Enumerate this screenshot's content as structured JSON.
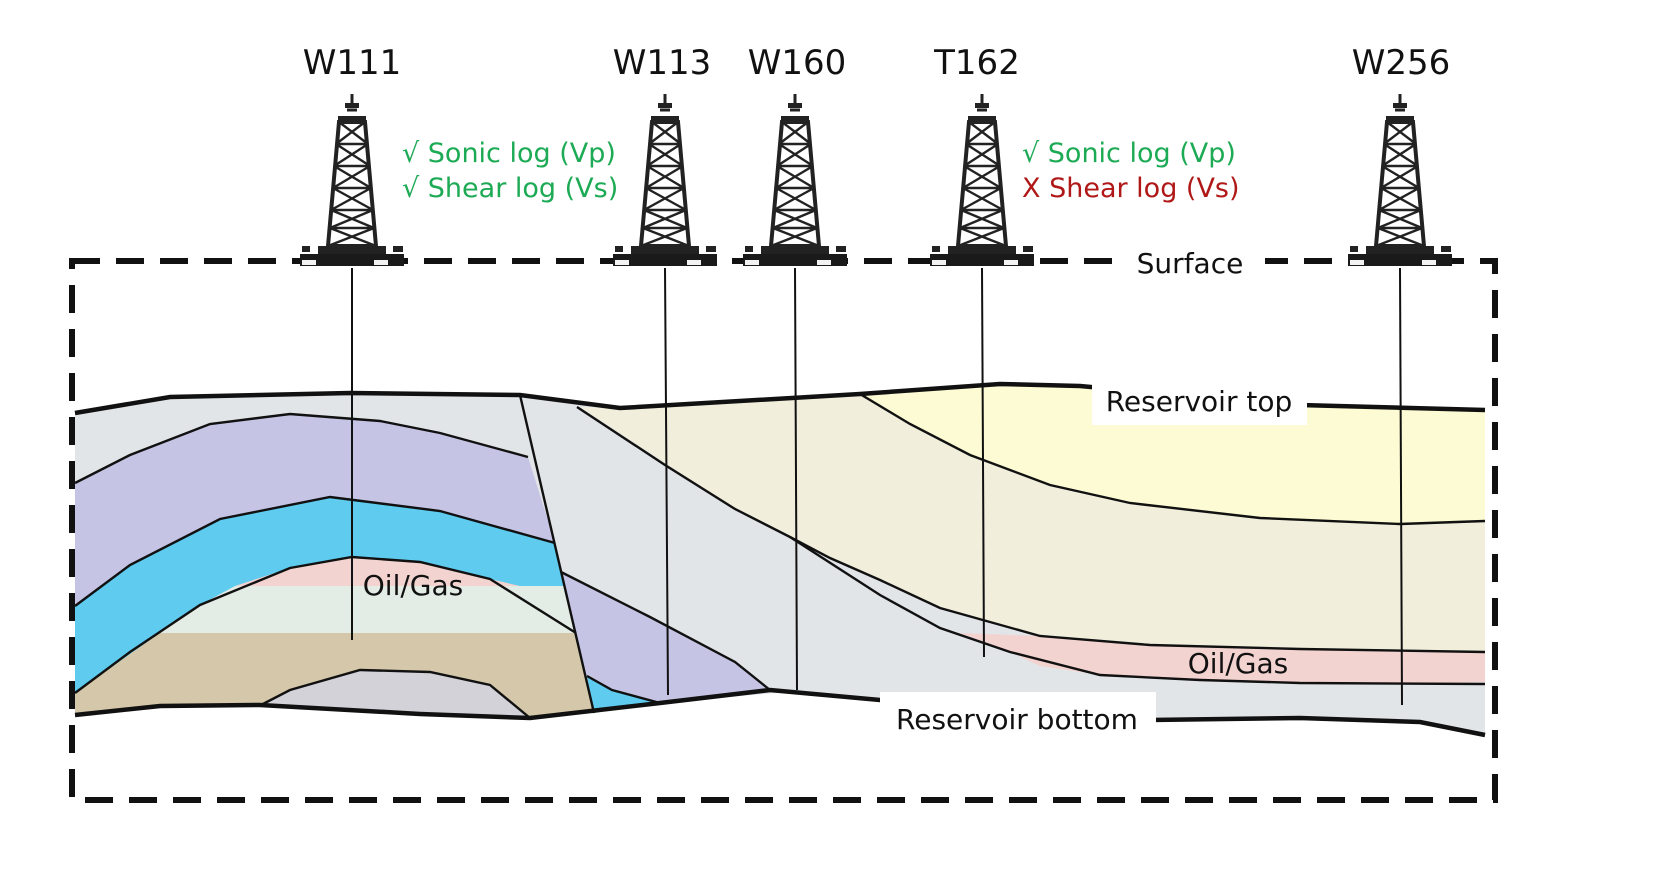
{
  "wells": [
    {
      "name": "W111",
      "color": "#111111"
    },
    {
      "name": "W113",
      "color": "#111111"
    },
    {
      "name": "W160",
      "color": "#111111"
    },
    {
      "name": "T162",
      "color": "#b01818"
    },
    {
      "name": "W256",
      "color": "#111111"
    }
  ],
  "logs": {
    "w111": {
      "sonic": {
        "text": "√ Sonic log (Vp)",
        "color": "#1daa55"
      },
      "shear": {
        "text": "√ Shear log (Vs)",
        "color": "#1daa55"
      }
    },
    "t162": {
      "sonic": {
        "text": "√ Sonic log (Vp)",
        "color": "#1daa55"
      },
      "shear": {
        "text": "X Shear log (Vs)",
        "color": "#b01818"
      }
    }
  },
  "labels": {
    "surface": "Surface",
    "reservoir_top": "Reservoir top",
    "reservoir_bottom": "Reservoir bottom",
    "oil_gas_left": "Oil/Gas",
    "oil_gas_right": "Oil/Gas"
  },
  "colors": {
    "grey_layer": "#e2e5e8",
    "lavender_layer": "#c6c4e4",
    "cyan_layer": "#5ecbef",
    "oil_gas": "#f3d3d0",
    "pale_green": "#e4ece6",
    "tan_layer": "#d5c8aa",
    "deep_grey": "#d3d2d9",
    "cream_layer": "#f1eedb",
    "yellow_layer": "#fdfbd3"
  }
}
